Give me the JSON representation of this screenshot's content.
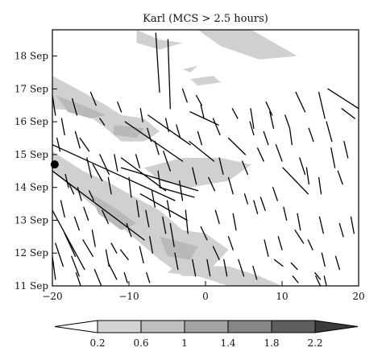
{
  "chart_data": {
    "type": "heatmap",
    "title": "Karl (MCS > 2.5 hours)",
    "xlabel": "",
    "ylabel": "",
    "xlim": [
      -20,
      20
    ],
    "x_ticks": [
      -20,
      -10,
      0,
      10,
      20
    ],
    "x_tick_labels": [
      "−20",
      "−10",
      "0",
      "10",
      "20"
    ],
    "ylim": [
      11,
      18.8
    ],
    "y_ticks": [
      11,
      12,
      13,
      14,
      15,
      16,
      17,
      18
    ],
    "y_tick_labels": [
      "11 Sep",
      "12 Sep",
      "13 Sep",
      "14 Sep",
      "15 Sep",
      "16 Sep",
      "17 Sep",
      "18 Sep"
    ],
    "grid": false,
    "colorbar": {
      "orientation": "horizontal",
      "placement": "bottom",
      "levels": [
        0.2,
        0.6,
        1,
        1.4,
        1.8,
        2.2
      ],
      "level_labels": [
        "0.2",
        "0.6",
        "1",
        "1.4",
        "1.8",
        "2.2"
      ],
      "colors": [
        "#ffffff",
        "#d4d4d4",
        "#bfbfbf",
        "#a3a3a3",
        "#868686",
        "#5e5e5e",
        "#3a3a3a"
      ]
    },
    "shading_color": "#cccccc",
    "shaded_regions": [
      {
        "level": 0.2,
        "points": [
          [
            -9,
            18.8
          ],
          [
            -6,
            18.5
          ],
          [
            -3,
            18.4
          ],
          [
            -6,
            18.2
          ],
          [
            -9,
            18.4
          ]
        ]
      },
      {
        "level": 0.2,
        "points": [
          [
            -1,
            18.8
          ],
          [
            6,
            18.8
          ],
          [
            12,
            18.0
          ],
          [
            7,
            17.9
          ],
          [
            2,
            18.3
          ]
        ]
      },
      {
        "level": 0.2,
        "points": [
          [
            -2,
            17.3
          ],
          [
            1,
            17.4
          ],
          [
            2,
            17.2
          ],
          [
            -1,
            17.1
          ]
        ]
      },
      {
        "level": 0.2,
        "points": [
          [
            -20,
            17.4
          ],
          [
            -16,
            16.9
          ],
          [
            -13,
            16.5
          ],
          [
            -11,
            16.2
          ],
          [
            -8,
            16.1
          ],
          [
            -6,
            15.7
          ],
          [
            -8,
            15.4
          ],
          [
            -11,
            15.4
          ],
          [
            -13,
            15.8
          ],
          [
            -16,
            16.3
          ],
          [
            -20,
            16.4
          ]
        ]
      },
      {
        "level": 0.6,
        "points": [
          [
            -19.5,
            16.8
          ],
          [
            -16,
            16.5
          ],
          [
            -13,
            16.2
          ],
          [
            -15,
            16.1
          ],
          [
            -18,
            16.3
          ]
        ]
      },
      {
        "level": 0.6,
        "points": [
          [
            -12,
            15.9
          ],
          [
            -8,
            15.8
          ],
          [
            -9,
            15.5
          ],
          [
            -12,
            15.6
          ]
        ]
      },
      {
        "level": 0.2,
        "points": [
          [
            -8,
            14.6
          ],
          [
            -3,
            14.9
          ],
          [
            2,
            14.9
          ],
          [
            6,
            14.7
          ],
          [
            3,
            14.2
          ],
          [
            -2,
            14.0
          ],
          [
            -6,
            14.2
          ]
        ]
      },
      {
        "level": 0.2,
        "points": [
          [
            -20,
            15.1
          ],
          [
            -16,
            14.5
          ],
          [
            -13,
            14.2
          ],
          [
            -10,
            13.8
          ],
          [
            -6,
            13.3
          ],
          [
            -3,
            12.7
          ],
          [
            0,
            12.6
          ],
          [
            3,
            12.1
          ],
          [
            1,
            11.6
          ],
          [
            -1,
            11.3
          ],
          [
            -3,
            11.3
          ],
          [
            -6,
            11.8
          ],
          [
            -9,
            12.4
          ],
          [
            -12,
            13.0
          ],
          [
            -15,
            13.5
          ],
          [
            -18,
            14.1
          ],
          [
            -20,
            14.5
          ]
        ]
      },
      {
        "level": 0.6,
        "points": [
          [
            -15,
            13.8
          ],
          [
            -12,
            13.4
          ],
          [
            -9,
            12.9
          ],
          [
            -11,
            12.7
          ],
          [
            -14,
            13.2
          ]
        ]
      },
      {
        "level": 0.6,
        "points": [
          [
            -6,
            12.5
          ],
          [
            -1,
            12.2
          ],
          [
            -2,
            11.8
          ],
          [
            -5,
            11.9
          ]
        ]
      },
      {
        "level": 0.2,
        "points": [
          [
            -5,
            11.4
          ],
          [
            -1,
            11.3
          ],
          [
            3,
            11.0
          ],
          [
            10,
            11.0
          ],
          [
            7,
            11.3
          ],
          [
            3,
            11.6
          ],
          [
            0,
            11.6
          ],
          [
            -4,
            11.6
          ]
        ]
      },
      {
        "level": 0.2,
        "points": [
          [
            -3,
            17.6
          ],
          [
            -1,
            17.7
          ],
          [
            -2,
            17.5
          ]
        ]
      }
    ],
    "marker": {
      "x": -19.7,
      "y": 14.7
    },
    "line_segments": [
      [
        -6.5,
        18.7,
        -6.0,
        16.9
      ],
      [
        -4.9,
        18.5,
        -4.6,
        16.4
      ],
      [
        -20,
        15.3,
        -4.0,
        13.6
      ],
      [
        -20,
        14.5,
        -8.0,
        12.4
      ],
      [
        -20,
        13.3,
        -15.8,
        11.5
      ],
      [
        -10.5,
        16.0,
        -3.0,
        14.8
      ],
      [
        -7.5,
        16.2,
        -2.0,
        15.3
      ],
      [
        -11,
        14.9,
        -5.2,
        13.9
      ],
      [
        -11,
        14.6,
        -1.0,
        13.9
      ],
      [
        -8.5,
        13.8,
        -2.4,
        13.0
      ],
      [
        -6.0,
        14.0,
        -1.5,
        13.7
      ],
      [
        -2.1,
        15.4,
        1.1,
        14.8
      ],
      [
        -5.5,
        15.1,
        -4.6,
        14.5
      ],
      [
        -2.0,
        16.3,
        1.7,
        15.9
      ],
      [
        3.0,
        15.5,
        5.2,
        15.0
      ],
      [
        5.9,
        16.4,
        6.3,
        15.8
      ],
      [
        7.9,
        16.6,
        8.7,
        16.2
      ],
      [
        11.8,
        16.9,
        13.0,
        16.3
      ],
      [
        14.8,
        16.9,
        15.6,
        16.1
      ],
      [
        16.0,
        17.0,
        20.0,
        16.4
      ],
      [
        17.8,
        16.4,
        19.5,
        16.1
      ],
      [
        15.8,
        16.0,
        16.5,
        15.4
      ],
      [
        10.1,
        14.6,
        13.4,
        13.8
      ],
      [
        11.0,
        15.8,
        11.3,
        15.3
      ],
      [
        13.2,
        14.6,
        13.5,
        14.1
      ],
      [
        14.8,
        14.3,
        15.1,
        13.8
      ],
      [
        10.2,
        13.4,
        10.6,
        13.0
      ],
      [
        7.7,
        12.4,
        8.2,
        11.9
      ],
      [
        9.0,
        11.8,
        10.1,
        11.6
      ],
      [
        11.2,
        11.7,
        12.0,
        11.5
      ],
      [
        11.4,
        11.3,
        12.1,
        11.1
      ],
      [
        14.3,
        11.4,
        15.0,
        11.2
      ],
      [
        14.4,
        11.3,
        15.0,
        11.0
      ],
      [
        11.7,
        12.7,
        12.8,
        12.3
      ],
      [
        -18.4,
        12.6,
        -17.0,
        11.9
      ],
      [
        -17.5,
        11.9,
        -16.5,
        11.3
      ],
      [
        -16.0,
        12.4,
        -14.7,
        11.9
      ],
      [
        -14.5,
        11.5,
        -13.6,
        11.0
      ],
      [
        -12.7,
        11.7,
        -11.6,
        11.2
      ],
      [
        -13.5,
        13.3,
        -12.7,
        12.9
      ],
      [
        -11.1,
        12.1,
        -10.1,
        11.8
      ],
      [
        -18.9,
        13.6,
        -18.4,
        13.1
      ],
      [
        -17.8,
        14.1,
        -17.2,
        13.8
      ],
      [
        -13.8,
        15.0,
        -12.6,
        14.4
      ],
      [
        -16.4,
        15.5,
        -15.2,
        15.1
      ],
      [
        -14.7,
        14.7,
        -13.5,
        14.2
      ],
      [
        -15.5,
        14.9,
        -14.9,
        14.3
      ],
      [
        -15.2,
        13.9,
        -14.6,
        13.6
      ],
      [
        -13.8,
        16.1,
        -13.2,
        15.9
      ],
      [
        -11.5,
        16.6,
        -11.0,
        16.3
      ],
      [
        -15.0,
        16.9,
        -14.3,
        16.5
      ],
      [
        -8.5,
        16.4,
        -8.2,
        16.0
      ],
      [
        -7.6,
        15.8,
        -7.1,
        15.4
      ],
      [
        -3.0,
        17.0,
        -2.4,
        16.6
      ],
      [
        -1.2,
        16.8,
        -0.5,
        16.5
      ],
      [
        -0.6,
        16.5,
        -0.2,
        16.1
      ],
      [
        1.0,
        16.1,
        1.9,
        15.6
      ],
      [
        3.5,
        16.4,
        4.2,
        16.1
      ],
      [
        5.8,
        16.0,
        6.3,
        15.6
      ],
      [
        7.6,
        15.7,
        8.2,
        15.3
      ],
      [
        6.8,
        15.2,
        7.6,
        14.8
      ],
      [
        4.8,
        14.8,
        5.5,
        14.4
      ],
      [
        0.4,
        14.3,
        1.2,
        13.9
      ],
      [
        3.0,
        14.3,
        3.6,
        13.8
      ],
      [
        5.1,
        13.8,
        5.5,
        13.5
      ],
      [
        6.3,
        13.6,
        6.8,
        13.2
      ],
      [
        3.0,
        12.5,
        3.6,
        12.1
      ],
      [
        1.0,
        12.2,
        1.8,
        11.8
      ],
      [
        -0.6,
        12.8,
        0.2,
        12.4
      ],
      [
        -2.6,
        13.3,
        -2.3,
        12.6
      ],
      [
        -4.6,
        12.9,
        -4.1,
        12.2
      ],
      [
        -7.3,
        12.5,
        -6.9,
        12.0
      ],
      [
        -8.6,
        12.2,
        -8.1,
        11.7
      ],
      [
        -4.0,
        12.0,
        -3.6,
        11.5
      ],
      [
        -1.7,
        11.8,
        -1.3,
        11.3
      ],
      [
        0.2,
        11.8,
        0.6,
        11.3
      ],
      [
        2.4,
        11.8,
        2.8,
        11.3
      ],
      [
        4.3,
        11.8,
        5.0,
        11.3
      ],
      [
        6.2,
        11.6,
        6.7,
        11.2
      ],
      [
        -10.0,
        14.3,
        -9.7,
        13.7
      ],
      [
        -11.9,
        15.0,
        -11.5,
        14.5
      ],
      [
        -12.7,
        14.3,
        -12.3,
        13.8
      ],
      [
        -6.2,
        14.5,
        -5.9,
        14.0
      ],
      [
        -3.4,
        14.2,
        -3.0,
        13.6
      ],
      [
        -19.6,
        12.3,
        -18.6,
        11.6
      ],
      [
        -20.0,
        11.9,
        -19.6,
        11.2
      ],
      [
        -17.1,
        13.1,
        -16.5,
        12.7
      ],
      [
        -16.9,
        11.4,
        -16.3,
        11.0
      ],
      [
        -10.3,
        12.9,
        -9.7,
        12.5
      ],
      [
        -12.3,
        12.3,
        -11.6,
        12.0
      ],
      [
        12.3,
        14.9,
        13.0,
        14.4
      ],
      [
        16.4,
        15.2,
        16.9,
        14.6
      ],
      [
        18.1,
        15.4,
        18.6,
        14.9
      ],
      [
        17.3,
        14.5,
        17.9,
        14.1
      ],
      [
        17.5,
        12.9,
        18.0,
        12.5
      ],
      [
        19.0,
        13.1,
        19.4,
        12.6
      ],
      [
        13.4,
        12.4,
        14.0,
        12.1
      ],
      [
        15.5,
        11.3,
        15.8,
        11.0
      ],
      [
        8.4,
        16.3,
        8.9,
        15.8
      ],
      [
        9.2,
        15.3,
        10.0,
        14.8
      ],
      [
        1.8,
        14.9,
        2.3,
        14.4
      ],
      [
        -1.7,
        14.6,
        -1.2,
        14.1
      ],
      [
        -20.0,
        16.8,
        -19.6,
        16.2
      ],
      [
        -18.8,
        16.1,
        -18.4,
        15.6
      ],
      [
        -17.4,
        16.7,
        -16.8,
        16.2
      ],
      [
        -19.4,
        15.5,
        -19.0,
        15.1
      ],
      [
        -17.0,
        15.7,
        -16.4,
        15.2
      ],
      [
        -9.0,
        13.6,
        -8.7,
        13.1
      ],
      [
        -7.0,
        13.9,
        -6.6,
        13.4
      ],
      [
        -5.0,
        13.6,
        -4.6,
        13.1
      ],
      [
        -14.8,
        12.7,
        -14.4,
        12.2
      ],
      [
        -15.9,
        13.4,
        -15.3,
        13.0
      ],
      [
        -13.0,
        12.1,
        -12.6,
        11.6
      ],
      [
        -10.6,
        11.4,
        -10.2,
        11.1
      ],
      [
        -7.7,
        11.4,
        -7.3,
        11.1
      ],
      [
        13.5,
        15.8,
        14.1,
        15.4
      ],
      [
        10.4,
        16.2,
        11.0,
        15.8
      ],
      [
        12.0,
        13.2,
        12.4,
        12.7
      ],
      [
        14.9,
        13.1,
        15.4,
        12.6
      ],
      [
        9.5,
        12.5,
        10.0,
        12.1
      ],
      [
        15.2,
        12.0,
        15.6,
        11.6
      ],
      [
        17.0,
        11.9,
        17.5,
        11.5
      ],
      [
        -1.0,
        15.7,
        -0.5,
        15.3
      ],
      [
        -3.8,
        15.9,
        -3.3,
        15.5
      ],
      [
        -5.2,
        16.1,
        -4.8,
        15.7
      ],
      [
        -6.6,
        15.4,
        -6.1,
        15.0
      ],
      [
        -9.1,
        15.0,
        -8.6,
        14.6
      ],
      [
        -7.8,
        13.3,
        -7.4,
        12.8
      ],
      [
        -5.6,
        13.1,
        -5.2,
        12.6
      ],
      [
        1.3,
        13.3,
        1.8,
        12.9
      ],
      [
        3.6,
        13.2,
        4.0,
        12.7
      ],
      [
        7.2,
        13.7,
        7.8,
        13.3
      ],
      [
        8.8,
        14.0,
        9.4,
        13.6
      ],
      [
        -18.3,
        14.4,
        -17.9,
        14.0
      ],
      [
        -16.7,
        14.0,
        -16.2,
        13.6
      ]
    ]
  }
}
